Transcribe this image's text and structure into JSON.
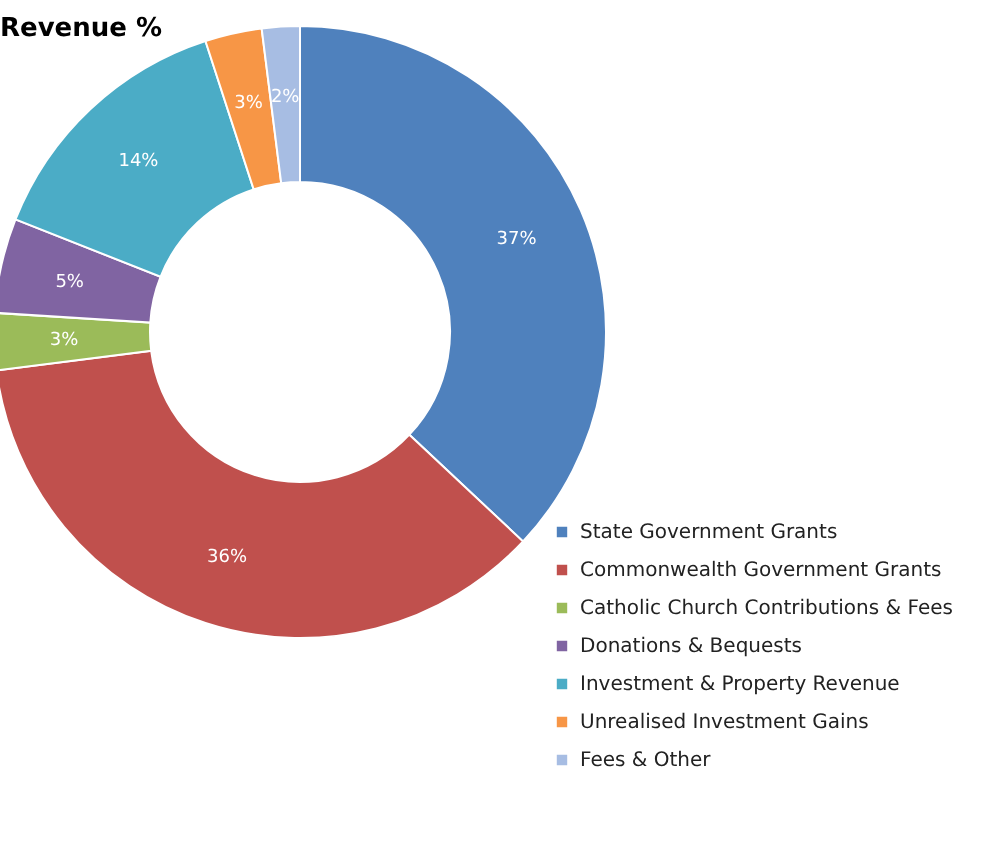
{
  "chart_data": {
    "type": "donut",
    "title": "Revenue %",
    "categories": [
      "State Government Grants",
      "Commonwealth Government Grants",
      "Catholic Church Contributions & Fees",
      "Donations & Bequests",
      "Investment & Property Revenue",
      "Unrealised Investment Gains",
      "Fees & Other"
    ],
    "values": [
      37,
      36,
      3,
      5,
      14,
      3,
      2
    ],
    "colors": [
      "#4f81bd",
      "#c0504d",
      "#9bbb59",
      "#8064a2",
      "#4bacc6",
      "#f79646",
      "#a7bde3"
    ],
    "value_labels": [
      "37%",
      "36%",
      "3%",
      "5%",
      "14%",
      "3%",
      "2%"
    ],
    "legend": "bottom right"
  }
}
